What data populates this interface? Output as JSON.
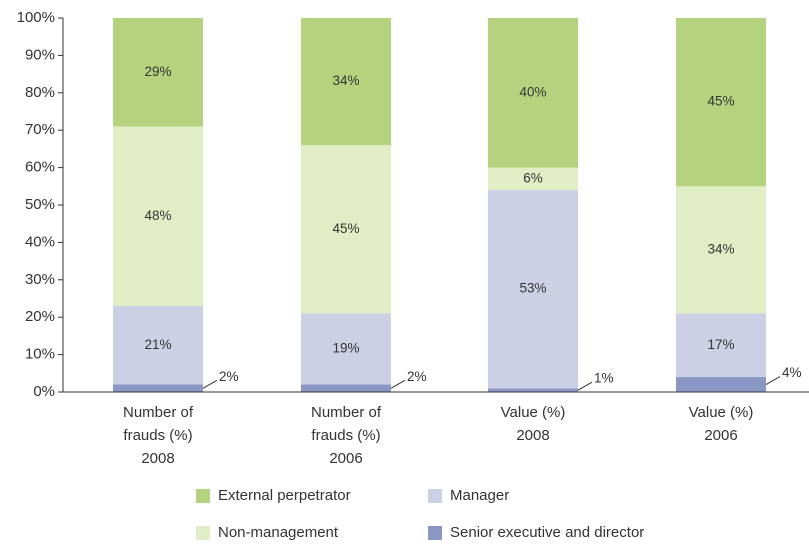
{
  "chart_data": {
    "type": "stacked_bar",
    "categories": [
      [
        "Number of",
        "frauds (%)",
        "2008"
      ],
      [
        "Number of",
        "frauds (%)",
        "2006"
      ],
      [
        "Value (%)",
        "2008"
      ],
      [
        "Value (%)",
        "2006"
      ]
    ],
    "series": [
      {
        "name": "Senior executive and director",
        "color": "#8a97c4",
        "values": [
          2,
          2,
          1,
          4
        ],
        "value_labels": [
          "2%",
          "2%",
          "1%",
          "4%"
        ]
      },
      {
        "name": "Manager",
        "color": "#cbd0e4",
        "values": [
          21,
          19,
          53,
          17
        ],
        "value_labels": [
          "21%",
          "19%",
          "53%",
          "17%"
        ]
      },
      {
        "name": "Non-management",
        "color": "#e1edc4",
        "values": [
          48,
          45,
          6,
          34
        ],
        "value_labels": [
          "48%",
          "45%",
          "6%",
          "34%"
        ]
      },
      {
        "name": "External perpetrator",
        "color": "#b5d37e",
        "values": [
          29,
          34,
          40,
          45
        ],
        "value_labels": [
          "29%",
          "34%",
          "40%",
          "45%"
        ]
      }
    ],
    "ylim": [
      0,
      100
    ],
    "yticks": [
      {
        "value": 0,
        "label": "0%"
      },
      {
        "value": 10,
        "label": "10%"
      },
      {
        "value": 20,
        "label": "20%"
      },
      {
        "value": 30,
        "label": "30%"
      },
      {
        "value": 40,
        "label": "40%"
      },
      {
        "value": 50,
        "label": "50%"
      },
      {
        "value": 60,
        "label": "60%"
      },
      {
        "value": 70,
        "label": "70%"
      },
      {
        "value": 80,
        "label": "80%"
      },
      {
        "value": 90,
        "label": "90%"
      },
      {
        "value": 100,
        "label": "100%"
      }
    ],
    "grid": false
  }
}
